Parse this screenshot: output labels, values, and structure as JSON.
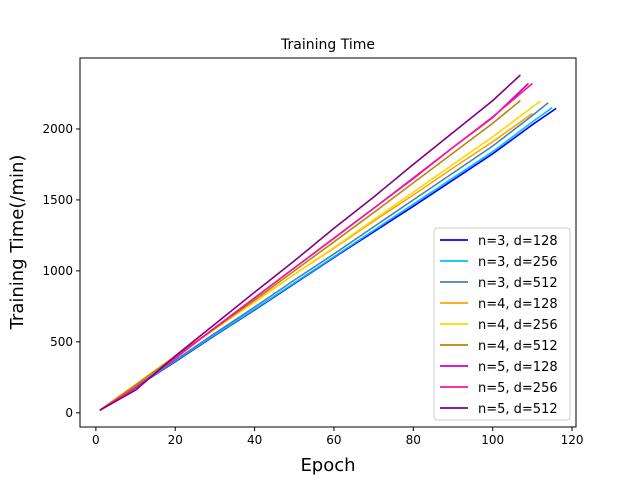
{
  "chart_data": {
    "type": "line",
    "title": "Training Time",
    "xlabel": "Epoch",
    "ylabel": "Training Time(/min)",
    "xlim": [
      -4,
      121
    ],
    "ylim": [
      -100,
      2500
    ],
    "xticks": [
      0,
      20,
      40,
      60,
      80,
      100,
      120
    ],
    "yticks": [
      0,
      500,
      1000,
      1500,
      2000
    ],
    "grid": false,
    "legend_position": "lower-right",
    "series": [
      {
        "name": "n=3, d=128",
        "color": "#0000ff",
        "x": [
          1,
          10,
          20,
          30,
          40,
          50,
          60,
          70,
          80,
          90,
          100,
          110,
          116
        ],
        "y": [
          18,
          180,
          360,
          545,
          725,
          910,
          1095,
          1275,
          1455,
          1640,
          1825,
          2030,
          2145
        ]
      },
      {
        "name": "n=3, d=256",
        "color": "#00bfff",
        "x": [
          1,
          10,
          20,
          30,
          40,
          50,
          60,
          70,
          80,
          90,
          100,
          110,
          115
        ],
        "y": [
          18,
          182,
          365,
          550,
          730,
          915,
          1100,
          1285,
          1470,
          1655,
          1840,
          2050,
          2150
        ]
      },
      {
        "name": "n=3, d=512",
        "color": "#4682b4",
        "x": [
          1,
          10,
          20,
          30,
          40,
          50,
          60,
          70,
          80,
          90,
          100,
          110,
          114
        ],
        "y": [
          18,
          185,
          370,
          560,
          745,
          935,
          1120,
          1310,
          1500,
          1690,
          1880,
          2095,
          2185
        ]
      },
      {
        "name": "n=4, d=128",
        "color": "#ffa500",
        "x": [
          1,
          10,
          20,
          30,
          40,
          50,
          60,
          70,
          80,
          90,
          100,
          110
        ],
        "y": [
          18,
          200,
          400,
          595,
          785,
          975,
          1160,
          1350,
          1535,
          1725,
          1910,
          2110
        ]
      },
      {
        "name": "n=4, d=256",
        "color": "#ffd700",
        "x": [
          1,
          10,
          20,
          30,
          40,
          50,
          60,
          70,
          80,
          90,
          100,
          110,
          112
        ],
        "y": [
          18,
          198,
          395,
          590,
          780,
          975,
          1165,
          1360,
          1555,
          1750,
          1945,
          2155,
          2195
        ]
      },
      {
        "name": "n=4, d=512",
        "color": "#b8860b",
        "x": [
          1,
          10,
          20,
          30,
          40,
          50,
          60,
          70,
          80,
          90,
          100,
          107
        ],
        "y": [
          18,
          195,
          395,
          595,
          795,
          1000,
          1205,
          1410,
          1620,
          1830,
          2040,
          2200
        ]
      },
      {
        "name": "n=5, d=128",
        "color": "#cc00cc",
        "x": [
          1,
          10,
          20,
          30,
          40,
          50,
          60,
          70,
          80,
          90,
          100,
          109
        ],
        "y": [
          18,
          175,
          385,
          600,
          810,
          1020,
          1230,
          1440,
          1650,
          1870,
          2080,
          2320
        ]
      },
      {
        "name": "n=5, d=256",
        "color": "#ff1493",
        "x": [
          1,
          10,
          20,
          30,
          40,
          50,
          60,
          70,
          80,
          90,
          100,
          110
        ],
        "y": [
          18,
          175,
          385,
          600,
          810,
          1020,
          1230,
          1440,
          1655,
          1870,
          2085,
          2320
        ]
      },
      {
        "name": "n=5, d=512",
        "color": "#800080",
        "x": [
          1,
          10,
          20,
          30,
          40,
          50,
          60,
          70,
          80,
          90,
          100,
          107
        ],
        "y": [
          18,
          160,
          400,
          625,
          850,
          1070,
          1300,
          1520,
          1750,
          1975,
          2200,
          2380
        ]
      }
    ]
  }
}
